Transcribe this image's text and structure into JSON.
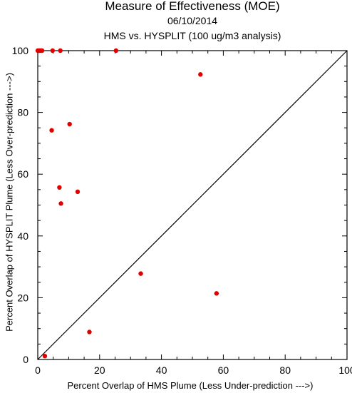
{
  "chart_data": {
    "type": "scatter",
    "title": "Measure of Effectiveness (MOE)",
    "subtitle": "06/10/2014",
    "subtitle2": "HMS vs. HYSPLIT  (100 ug/m3 analysis)",
    "xlabel": "Percent Overlap of HMS Plume (Less Under-prediction --->)",
    "ylabel": "Percent Overlap of HYSPLIT Plume (Less Over-prediction --->)",
    "xlim": [
      0,
      100
    ],
    "ylim": [
      0,
      100
    ],
    "xticks": [
      "0",
      "20",
      "40",
      "60",
      "80",
      "100"
    ],
    "yticks": [
      "0",
      "20",
      "40",
      "60",
      "80",
      "100"
    ],
    "grid": false,
    "point_color": "#e00000",
    "points": [
      {
        "x": 0.0,
        "y": 100
      },
      {
        "x": 0.3,
        "y": 100
      },
      {
        "x": 0.6,
        "y": 100
      },
      {
        "x": 1.0,
        "y": 100
      },
      {
        "x": 1.4,
        "y": 100
      },
      {
        "x": 4.8,
        "y": 100
      },
      {
        "x": 7.3,
        "y": 100
      },
      {
        "x": 25.3,
        "y": 100
      },
      {
        "x": 52.6,
        "y": 92.3
      },
      {
        "x": 10.3,
        "y": 76.2
      },
      {
        "x": 4.5,
        "y": 74.2
      },
      {
        "x": 7.0,
        "y": 55.7
      },
      {
        "x": 12.9,
        "y": 54.3
      },
      {
        "x": 7.5,
        "y": 50.5
      },
      {
        "x": 33.3,
        "y": 27.8
      },
      {
        "x": 57.8,
        "y": 21.4
      },
      {
        "x": 16.7,
        "y": 8.9
      },
      {
        "x": 2.3,
        "y": 1.1
      }
    ],
    "reference_line": "diagonal y = x"
  }
}
